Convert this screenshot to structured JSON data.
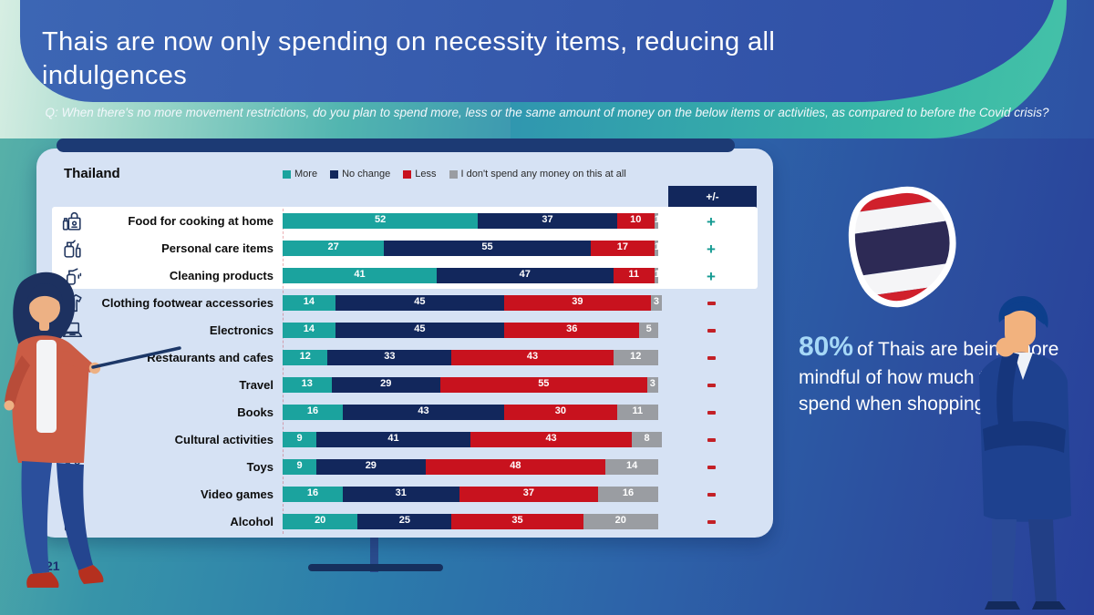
{
  "slide": {
    "title": "Thais are now only spending on necessity items, reducing all indulgences",
    "question": "Q: When there's no more movement restrictions, do you plan to spend more, less or the same amount of money on the below items or activities, as compared to before the Covid crisis?",
    "page_number": "21"
  },
  "chart_data": {
    "type": "bar",
    "orientation": "horizontal-stacked",
    "title": "Thailand",
    "xlim": [
      0,
      100
    ],
    "legend_position": "top",
    "plus_minus_header": "+/-",
    "legend": [
      {
        "label": "More",
        "color": "#1ba39e"
      },
      {
        "label": "No change",
        "color": "#12275c"
      },
      {
        "label": "Less",
        "color": "#c8121e"
      },
      {
        "label": "I don't spend any money on this at all",
        "color": "#9a9da2"
      }
    ],
    "rows": [
      {
        "label": "Food for cooking at home",
        "icon": "grocery-bag-icon",
        "values": [
          52,
          37,
          10,
          1
        ],
        "trend": "+",
        "highlighted": true
      },
      {
        "label": "Personal care items",
        "icon": "personal-care-icon",
        "values": [
          27,
          55,
          17,
          1
        ],
        "trend": "+",
        "highlighted": true
      },
      {
        "label": "Cleaning products",
        "icon": "cleaning-spray-icon",
        "values": [
          41,
          47,
          11,
          1
        ],
        "trend": "+",
        "highlighted": true
      },
      {
        "label": "Clothing footwear accessories",
        "icon": "tshirt-icon",
        "values": [
          14,
          45,
          39,
          3
        ],
        "trend": "-",
        "highlighted": false
      },
      {
        "label": "Electronics",
        "icon": "laptop-icon",
        "values": [
          14,
          45,
          36,
          5
        ],
        "trend": "-",
        "highlighted": false
      },
      {
        "label": "Restaurants and cafes",
        "icon": "chef-icon",
        "values": [
          12,
          33,
          43,
          12
        ],
        "trend": "-",
        "highlighted": false
      },
      {
        "label": "Travel",
        "icon": "compass-icon",
        "values": [
          13,
          29,
          55,
          3
        ],
        "trend": "-",
        "highlighted": false
      },
      {
        "label": "Books",
        "icon": "open-book-icon",
        "values": [
          16,
          43,
          30,
          11
        ],
        "trend": "-",
        "highlighted": false
      },
      {
        "label": "Cultural activities",
        "icon": "lotus-icon",
        "values": [
          9,
          41,
          43,
          8
        ],
        "trend": "-",
        "highlighted": false
      },
      {
        "label": "Toys",
        "icon": "toy-train-icon",
        "values": [
          9,
          29,
          48,
          14
        ],
        "trend": "-",
        "highlighted": false
      },
      {
        "label": "Video games",
        "icon": "gamepad-icon",
        "values": [
          16,
          31,
          37,
          16
        ],
        "trend": "-",
        "highlighted": false
      },
      {
        "label": "Alcohol",
        "icon": "drinks-icon",
        "values": [
          20,
          25,
          35,
          20
        ],
        "trend": "-",
        "highlighted": false
      }
    ]
  },
  "callout": {
    "stat": "80%",
    "text": "of Thais are being more mindful of how much they spend when shopping"
  },
  "colors": {
    "trend_plus": "#149a92",
    "trend_minus": "#c32026",
    "panel_bg": "#d6e2f4",
    "flag_red": "#d0202c",
    "flag_white": "#f5f5f7",
    "flag_navy": "#2d2a55"
  }
}
